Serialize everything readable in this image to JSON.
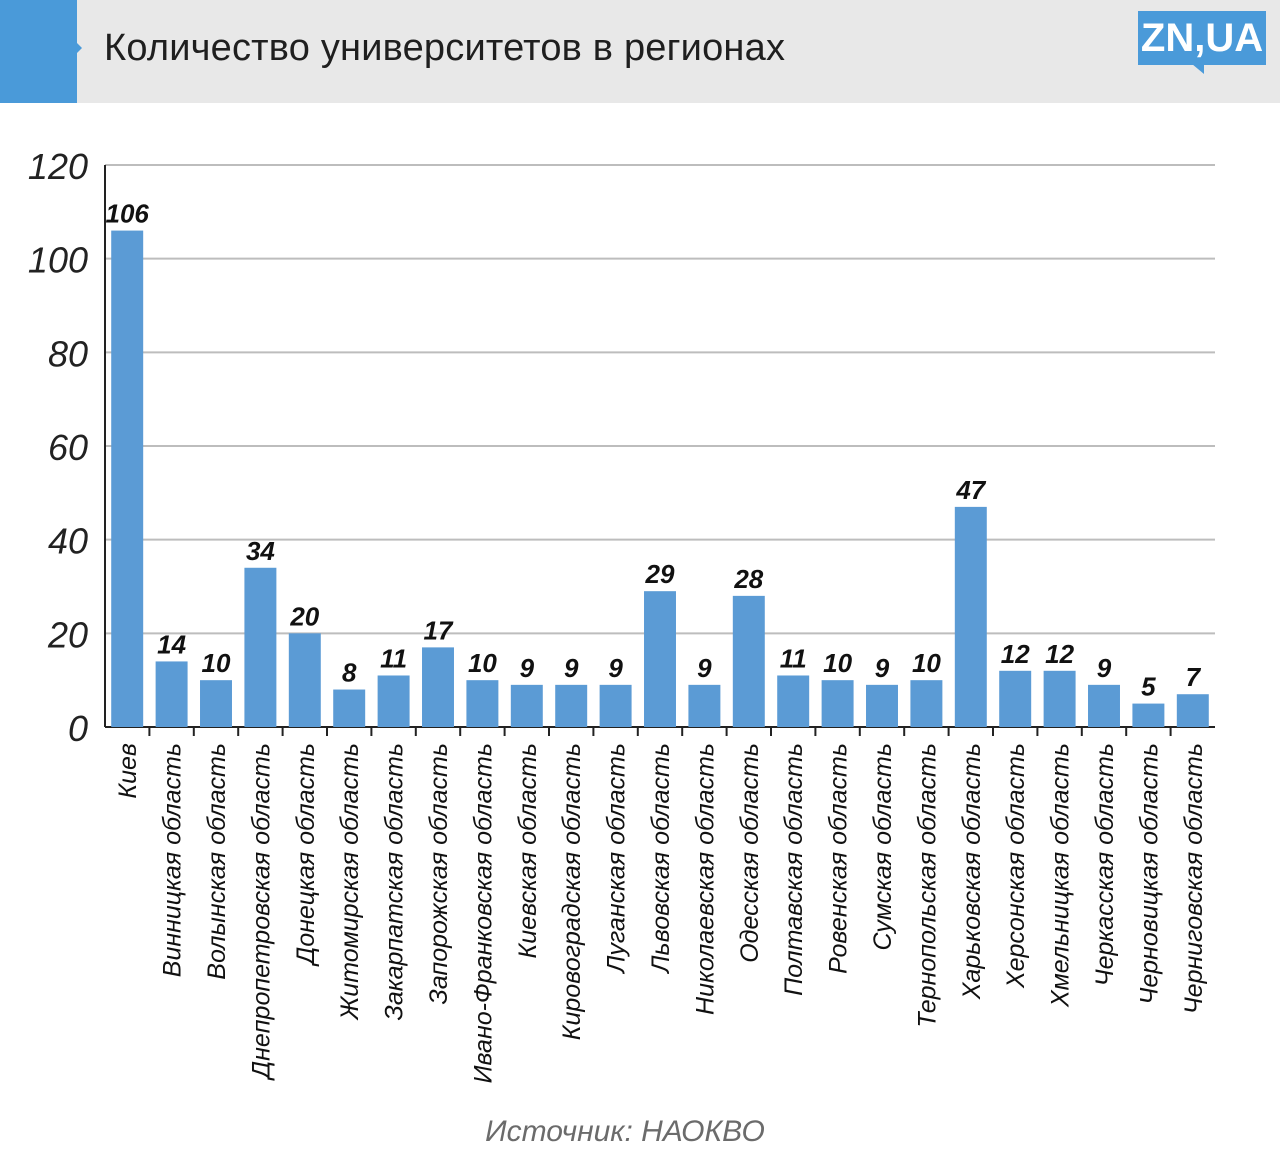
{
  "header": {
    "title": "Количество университетов в регионах",
    "logo": "ZN,UA"
  },
  "source": "Источник: НАОКВО",
  "colors": {
    "bar": "#5b9bd5",
    "accent": "#4a9ad9",
    "header_bg": "#e8e8e8",
    "grid": "#bdbdbd"
  },
  "chart_data": {
    "type": "bar",
    "title": "Количество университетов в регионах",
    "ylim": [
      0,
      120
    ],
    "yticks": [
      0,
      20,
      40,
      60,
      80,
      100,
      120
    ],
    "grid": true,
    "categories": [
      "Киев",
      "Винницкая область",
      "Волынская область",
      "Днепропетровская область",
      "Донецкая область",
      "Житомирская область",
      "Закарпатская область",
      "Запорожская область",
      "Ивано-Франковская область",
      "Киевская область",
      "Кировоградская область",
      "Луганская область",
      "Львовская область",
      "Николаевская область",
      "Одесская область",
      "Полтавская область",
      "Ровенская область",
      "Сумская область",
      "Тернопольская область",
      "Харьковская область",
      "Херсонская область",
      "Хмельницкая область",
      "Черкасская область",
      "Черновицкая область",
      "Черниговская область"
    ],
    "values": [
      106,
      14,
      10,
      34,
      20,
      8,
      11,
      17,
      10,
      9,
      9,
      9,
      29,
      9,
      28,
      11,
      10,
      9,
      10,
      47,
      12,
      12,
      9,
      5,
      7
    ]
  }
}
